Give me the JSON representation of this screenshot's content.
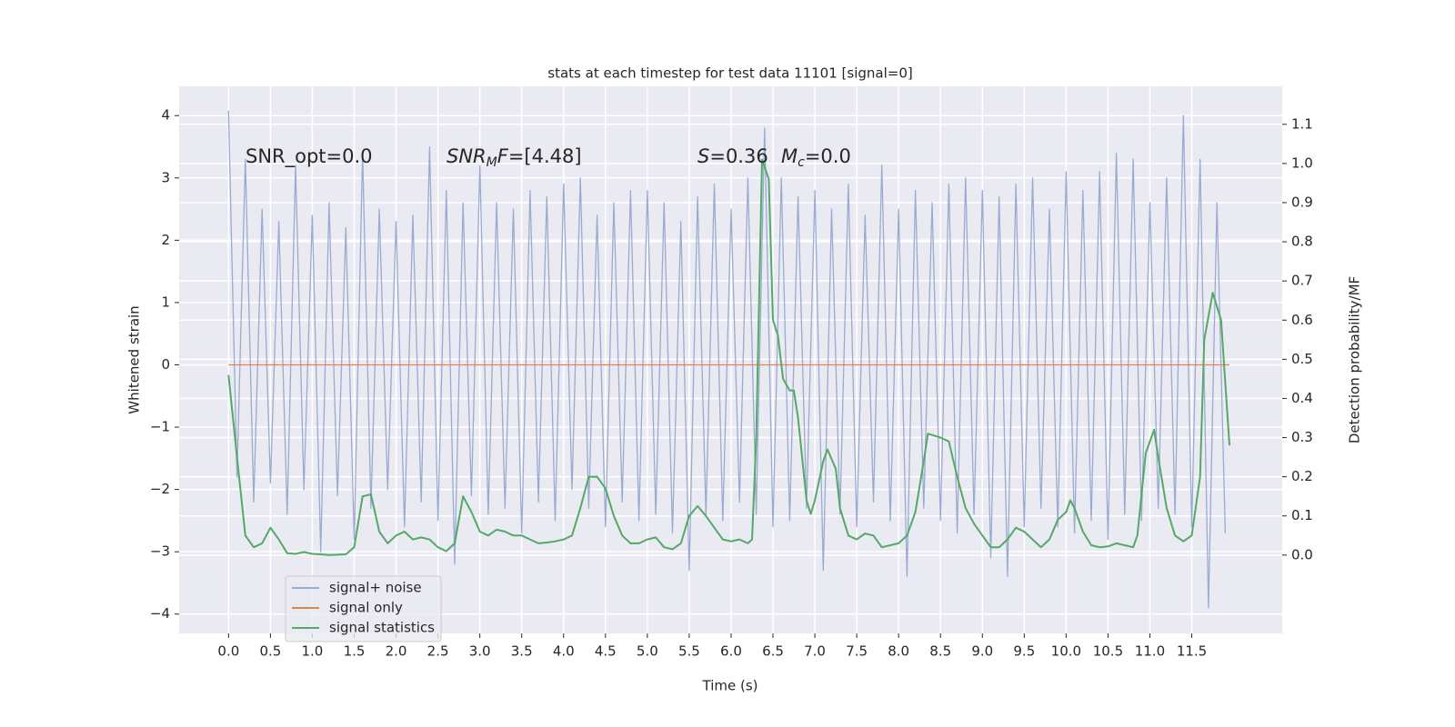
{
  "chart_data": {
    "type": "line",
    "title": "stats at each timestep for test data 11101 [signal=0]",
    "xlabel": "Time (s)",
    "ylabel": "Whitened strain",
    "y2label": "Detection probability/MF",
    "background": "#eaeaf2",
    "grid": true,
    "legend": "lower left",
    "xlim": [
      -0.59,
      12.58
    ],
    "ylim": [
      -4.31,
      4.47
    ],
    "y2lim": [
      -0.2,
      1.197
    ],
    "xticks": [
      {
        "value": 0,
        "label": "0.0"
      },
      0.5,
      {
        "value": 1,
        "label": "1.0"
      },
      1.5,
      {
        "value": 2,
        "label": "2.0"
      },
      2.5,
      {
        "value": 3,
        "label": "3.0"
      },
      3.5,
      {
        "value": 4,
        "label": "4.0"
      },
      4.5,
      {
        "value": 5,
        "label": "5.0"
      },
      5.5,
      {
        "value": 6,
        "label": "6.0"
      },
      6.5,
      {
        "value": 7,
        "label": "7.0"
      },
      7.5,
      {
        "value": 8,
        "label": "8.0"
      },
      8.5,
      {
        "value": 9,
        "label": "9.0"
      },
      9.5,
      {
        "value": 10,
        "label": "10.0"
      },
      10.5,
      {
        "value": 11,
        "label": "11.0"
      },
      11.5
    ],
    "yticks": [
      {
        "value": -4,
        "label": "−4"
      },
      {
        "value": -3,
        "label": "−3"
      },
      {
        "value": -2,
        "label": "−2"
      },
      {
        "value": -1,
        "label": "−1"
      },
      0,
      1,
      2,
      3,
      4
    ],
    "y2ticks": [
      {
        "value": 0,
        "label": "0.0"
      },
      0.1,
      0.2,
      0.3,
      0.4,
      0.5,
      0.6,
      0.7,
      0.8,
      0.9,
      {
        "value": 1,
        "label": "1.0"
      },
      1.1
    ],
    "annotations": [
      {
        "segments": [
          {
            "text": "SNR_opt=0.0"
          }
        ]
      },
      {
        "segments": [
          {
            "text": "SNR",
            "italic": true
          },
          {
            "text": "M",
            "italic": true,
            "sub": true
          },
          {
            "text": "F",
            "italic": true
          },
          {
            "text": "=[4.48]"
          }
        ]
      },
      {
        "segments": [
          {
            "text": "S",
            "italic": true
          },
          {
            "text": "=0.36"
          }
        ]
      },
      {
        "segments": [
          {
            "text": "M",
            "italic": true
          },
          {
            "text": "c",
            "italic": true,
            "sub": true
          },
          {
            "text": "=0.0"
          }
        ]
      }
    ],
    "series": [
      {
        "name": "signal+ noise",
        "color": "#9aabd0",
        "axis": "y",
        "x": [
          0.0,
          0.1,
          0.2,
          0.3,
          0.4,
          0.5,
          0.6,
          0.7,
          0.8,
          0.9,
          1.0,
          1.1,
          1.2,
          1.3,
          1.4,
          1.5,
          1.6,
          1.7,
          1.8,
          1.9,
          2.0,
          2.1,
          2.2,
          2.3,
          2.4,
          2.5,
          2.6,
          2.7,
          2.8,
          2.9,
          3.0,
          3.1,
          3.2,
          3.3,
          3.4,
          3.5,
          3.6,
          3.7,
          3.8,
          3.9,
          4.0,
          4.1,
          4.2,
          4.3,
          4.4,
          4.5,
          4.6,
          4.7,
          4.8,
          4.9,
          5.0,
          5.1,
          5.2,
          5.3,
          5.4,
          5.5,
          5.6,
          5.7,
          5.8,
          5.9,
          6.0,
          6.1,
          6.2,
          6.3,
          6.4,
          6.5,
          6.6,
          6.7,
          6.8,
          6.9,
          7.0,
          7.1,
          7.2,
          7.3,
          7.4,
          7.5,
          7.6,
          7.7,
          7.8,
          7.9,
          8.0,
          8.1,
          8.2,
          8.3,
          8.4,
          8.5,
          8.6,
          8.7,
          8.8,
          8.9,
          9.0,
          9.1,
          9.2,
          9.3,
          9.4,
          9.5,
          9.6,
          9.7,
          9.8,
          9.9,
          10.0,
          10.1,
          10.2,
          10.3,
          10.4,
          10.5,
          10.6,
          10.7,
          10.8,
          10.9,
          11.0,
          11.1,
          11.2,
          11.3,
          11.4,
          11.5,
          11.6,
          11.7,
          11.8,
          11.9
        ],
        "values": [
          4.08,
          -1.8,
          3.3,
          -2.2,
          2.5,
          -1.9,
          2.3,
          -2.4,
          3.2,
          -2.0,
          2.4,
          -3.0,
          2.6,
          -2.1,
          2.2,
          -2.8,
          3.4,
          -2.3,
          2.5,
          -2.0,
          2.3,
          -2.6,
          2.4,
          -2.2,
          3.5,
          -2.5,
          2.8,
          -3.2,
          2.6,
          -2.1,
          3.2,
          -2.4,
          2.6,
          -2.3,
          2.5,
          -2.7,
          2.8,
          -2.2,
          2.7,
          -2.5,
          2.9,
          -2.0,
          3.0,
          -2.3,
          2.4,
          -2.6,
          2.6,
          -2.2,
          2.8,
          -2.5,
          2.8,
          -2.4,
          2.6,
          -2.7,
          2.3,
          -3.3,
          2.7,
          -2.4,
          2.9,
          -2.5,
          2.5,
          -2.2,
          3.0,
          -2.4,
          3.8,
          -2.6,
          3.0,
          -2.5,
          2.7,
          -2.3,
          2.8,
          -3.3,
          2.5,
          -2.4,
          2.9,
          -2.6,
          2.4,
          -2.2,
          3.2,
          -2.5,
          2.5,
          -3.4,
          2.8,
          -2.3,
          2.6,
          -2.5,
          2.9,
          -2.7,
          3.0,
          -2.4,
          2.8,
          -3.1,
          2.7,
          -3.4,
          2.9,
          -2.6,
          3.0,
          -2.3,
          2.5,
          -2.6,
          3.1,
          -2.7,
          2.8,
          -2.5,
          3.1,
          -2.8,
          3.4,
          -2.4,
          3.3,
          -2.5,
          2.6,
          -2.3,
          3.0,
          -2.4,
          4.0,
          -2.6,
          3.3,
          -3.9,
          2.6,
          -2.7
        ]
      },
      {
        "name": "signal only",
        "color": "#dd8452",
        "axis": "y",
        "x": [
          0.0,
          11.95
        ],
        "values": [
          0,
          0
        ]
      },
      {
        "name": "signal statistics",
        "color": "#55a868",
        "axis": "y2",
        "x": [
          0.0,
          0.1,
          0.2,
          0.3,
          0.4,
          0.5,
          0.6,
          0.7,
          0.8,
          0.9,
          1.0,
          1.1,
          1.2,
          1.4,
          1.5,
          1.6,
          1.7,
          1.8,
          1.9,
          2.0,
          2.1,
          2.2,
          2.3,
          2.4,
          2.5,
          2.6,
          2.7,
          2.8,
          2.9,
          3.0,
          3.1,
          3.2,
          3.3,
          3.4,
          3.5,
          3.6,
          3.7,
          3.8,
          3.9,
          4.0,
          4.1,
          4.2,
          4.3,
          4.4,
          4.5,
          4.6,
          4.7,
          4.8,
          4.9,
          5.0,
          5.1,
          5.2,
          5.3,
          5.4,
          5.5,
          5.6,
          5.7,
          5.8,
          5.9,
          6.0,
          6.1,
          6.2,
          6.25,
          6.3,
          6.37,
          6.45,
          6.5,
          6.56,
          6.62,
          6.7,
          6.75,
          6.8,
          6.9,
          6.95,
          7.0,
          7.1,
          7.15,
          7.25,
          7.3,
          7.4,
          7.5,
          7.6,
          7.7,
          7.8,
          7.9,
          8.0,
          8.1,
          8.2,
          8.3,
          8.35,
          8.5,
          8.6,
          8.7,
          8.8,
          8.9,
          9.0,
          9.1,
          9.2,
          9.3,
          9.4,
          9.5,
          9.6,
          9.7,
          9.8,
          9.9,
          10.0,
          10.05,
          10.1,
          10.2,
          10.3,
          10.4,
          10.5,
          10.6,
          10.7,
          10.8,
          10.85,
          10.95,
          11.05,
          11.1,
          11.2,
          11.3,
          11.4,
          11.5,
          11.6,
          11.65,
          11.75,
          11.85,
          11.95
        ],
        "values": [
          0.46,
          0.25,
          0.05,
          0.02,
          0.03,
          0.07,
          0.04,
          0.005,
          0.003,
          0.008,
          0.003,
          0.002,
          0.0,
          0.002,
          0.02,
          0.15,
          0.155,
          0.06,
          0.03,
          0.05,
          0.06,
          0.04,
          0.045,
          0.04,
          0.02,
          0.01,
          0.03,
          0.15,
          0.11,
          0.06,
          0.05,
          0.065,
          0.06,
          0.05,
          0.05,
          0.04,
          0.03,
          0.032,
          0.035,
          0.04,
          0.05,
          0.12,
          0.2,
          0.2,
          0.17,
          0.1,
          0.05,
          0.03,
          0.03,
          0.04,
          0.045,
          0.02,
          0.015,
          0.03,
          0.1,
          0.125,
          0.1,
          0.07,
          0.04,
          0.035,
          0.04,
          0.03,
          0.04,
          0.3,
          1.01,
          0.96,
          0.6,
          0.56,
          0.45,
          0.42,
          0.42,
          0.35,
          0.14,
          0.105,
          0.14,
          0.24,
          0.27,
          0.22,
          0.12,
          0.05,
          0.04,
          0.055,
          0.05,
          0.02,
          0.025,
          0.03,
          0.05,
          0.11,
          0.24,
          0.31,
          0.3,
          0.29,
          0.2,
          0.12,
          0.08,
          0.05,
          0.02,
          0.02,
          0.04,
          0.07,
          0.06,
          0.04,
          0.02,
          0.04,
          0.09,
          0.11,
          0.14,
          0.12,
          0.06,
          0.025,
          0.02,
          0.022,
          0.03,
          0.025,
          0.02,
          0.05,
          0.26,
          0.32,
          0.25,
          0.12,
          0.05,
          0.035,
          0.05,
          0.2,
          0.55,
          0.67,
          0.6,
          0.28
        ]
      }
    ]
  }
}
